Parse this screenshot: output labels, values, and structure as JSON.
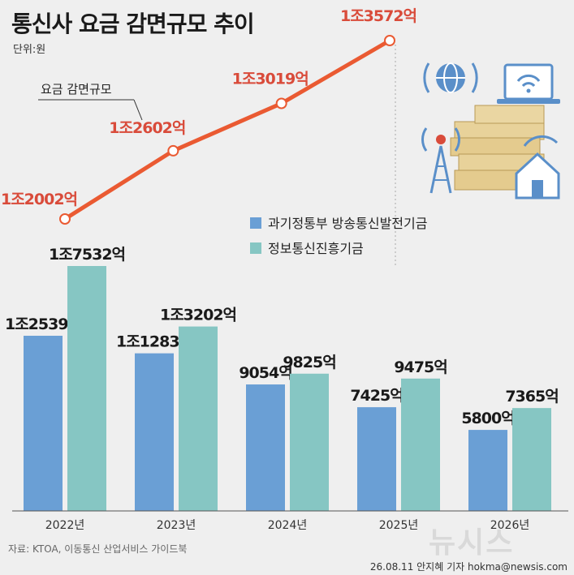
{
  "title": "통신사 요금 감면규모 추이",
  "unit": "단위:원",
  "source": "자료: KTOA, 이동통신 산업서비스 가이드북",
  "credit": "26.08.11 안지혜 기자 hokma@newsis.com",
  "logo": "뉴시스",
  "line_callout": "요금 감면규모",
  "colors": {
    "series_a": "#6a9fd5",
    "series_b": "#86c6c3",
    "line": "#ea5a32"
  },
  "chart_data": {
    "type": "bar",
    "categories": [
      "2022년",
      "2023년",
      "2024년",
      "2025년",
      "2026년"
    ],
    "series": [
      {
        "name": "과기정통부 방송통신발전기금",
        "values": [
          12539,
          11283,
          9054,
          7425,
          5800
        ],
        "labels": [
          "1조2539억",
          "1조1283억",
          "9054억",
          "7425억",
          "5800억"
        ]
      },
      {
        "name": "정보통신진흥기금",
        "values": [
          17532,
          13202,
          9825,
          9475,
          7365
        ],
        "labels": [
          "1조7532억",
          "1조3202억",
          "9825억",
          "9475억",
          "7365억"
        ]
      }
    ],
    "line": {
      "name": "요금 감면규모",
      "categories": [
        "2022년",
        "2023년",
        "2024년",
        "2025년"
      ],
      "values": [
        12002,
        12602,
        13019,
        13572
      ],
      "labels": [
        "1조2002억",
        "1조2602억",
        "1조3019억",
        "1조3572억"
      ]
    },
    "ylim": [
      0,
      17532
    ],
    "legend_position": "right"
  }
}
